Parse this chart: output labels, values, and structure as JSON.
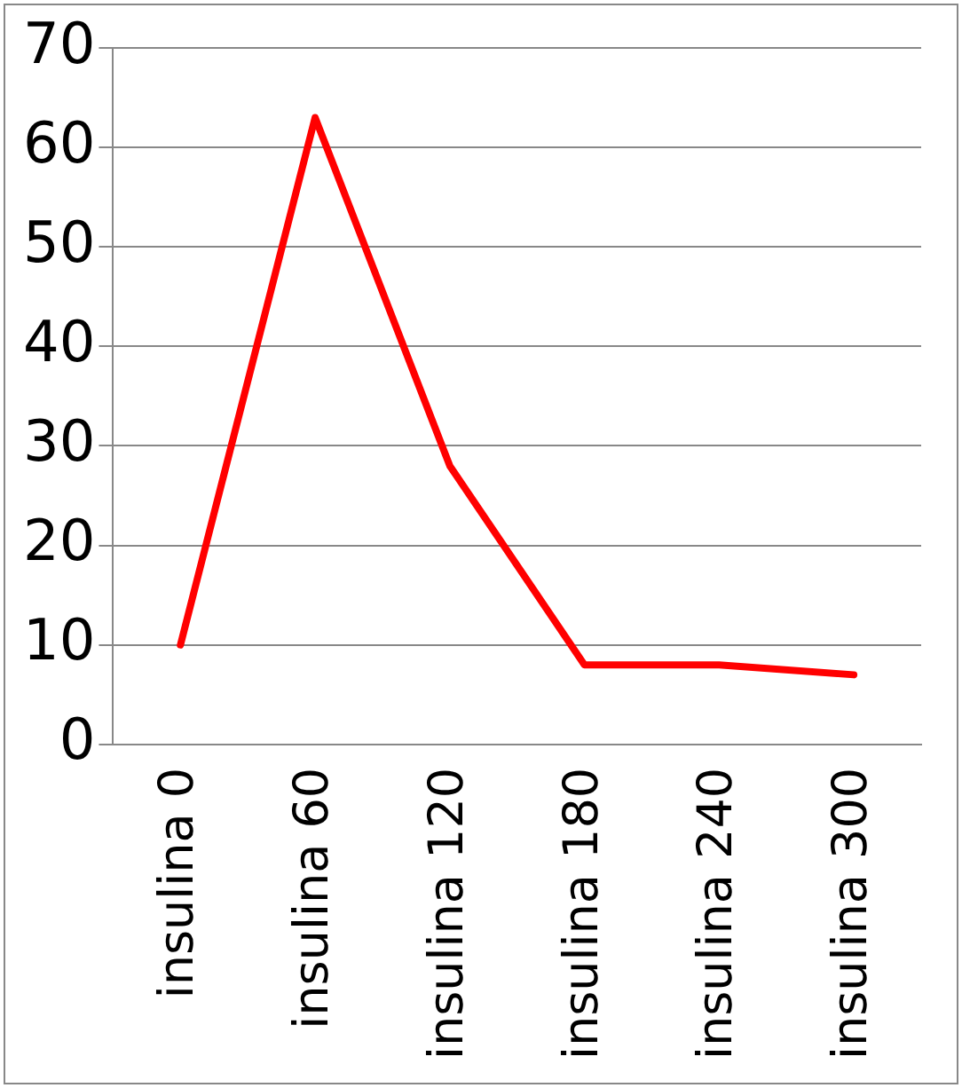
{
  "chart_data": {
    "type": "line",
    "categories": [
      "insulina 0",
      "insulina 60",
      "insulina 120",
      "insulina 180",
      "insulina 240",
      "insulina 300"
    ],
    "series": [
      {
        "color": "#ff0000",
        "values": [
          10,
          63,
          28,
          8,
          8,
          7
        ]
      }
    ],
    "ylim": [
      0,
      70
    ],
    "yticks": [
      0,
      10,
      20,
      30,
      40,
      50,
      60,
      70
    ],
    "grid": "y",
    "legend": false,
    "marker": "none",
    "line_style": "solid"
  }
}
